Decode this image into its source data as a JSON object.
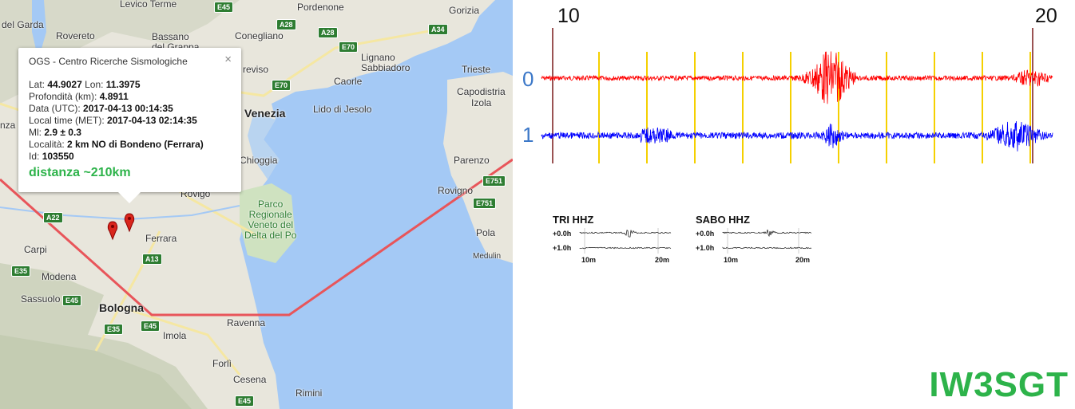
{
  "map": {
    "places": [
      {
        "id": "pordenone",
        "label": "Pordenone"
      },
      {
        "id": "gorizia",
        "label": "Gorizia"
      },
      {
        "id": "levico",
        "label": "Levico Terme"
      },
      {
        "id": "garda",
        "label": "del Garda"
      },
      {
        "id": "rovereto",
        "label": "Rovereto"
      },
      {
        "id": "bassano",
        "label": "Bassano\ndel Grappa"
      },
      {
        "id": "conegliano",
        "label": "Conegliano"
      },
      {
        "id": "lignano",
        "label": "Lignano\nSabbiadoro"
      },
      {
        "id": "trieste",
        "label": "Trieste"
      },
      {
        "id": "treviso",
        "label": "reviso"
      },
      {
        "id": "caorle",
        "label": "Caorle"
      },
      {
        "id": "capodistria",
        "label": "Capodistria"
      },
      {
        "id": "izola",
        "label": "Izola"
      },
      {
        "id": "venezia",
        "label": "Venezia"
      },
      {
        "id": "jesolo",
        "label": "Lido di Jesolo"
      },
      {
        "id": "chioggia",
        "label": "Chioggia"
      },
      {
        "id": "parenzo",
        "label": "Parenzo"
      },
      {
        "id": "rovigo",
        "label": "Rovigo"
      },
      {
        "id": "rovigno",
        "label": "Rovigno"
      },
      {
        "id": "park",
        "label": "Parco\nRegionale\nVeneto del\nDelta del Po"
      },
      {
        "id": "ferrara",
        "label": "Ferrara"
      },
      {
        "id": "carpi",
        "label": "Carpi"
      },
      {
        "id": "pola",
        "label": "Pola"
      },
      {
        "id": "medulin",
        "label": "Medulin"
      },
      {
        "id": "modena",
        "label": "Modena"
      },
      {
        "id": "sassuolo",
        "label": "Sassuolo"
      },
      {
        "id": "bologna",
        "label": "Bologna"
      },
      {
        "id": "ravenna",
        "label": "Ravenna"
      },
      {
        "id": "imola",
        "label": "Imola"
      },
      {
        "id": "forli",
        "label": "Forlì"
      },
      {
        "id": "cesena",
        "label": "Cesena"
      },
      {
        "id": "rimini",
        "label": "Rimini"
      },
      {
        "id": "nza",
        "label": "nza"
      }
    ],
    "shields": [
      {
        "id": "a28a",
        "label": "A28"
      },
      {
        "id": "a28b",
        "label": "A28"
      },
      {
        "id": "a34",
        "label": "A34"
      },
      {
        "id": "e70a",
        "label": "E70"
      },
      {
        "id": "e70b",
        "label": "E70"
      },
      {
        "id": "e45top",
        "label": "E45"
      },
      {
        "id": "a22",
        "label": "A22"
      },
      {
        "id": "a13",
        "label": "A13"
      },
      {
        "id": "e35",
        "label": "E35"
      },
      {
        "id": "e45a",
        "label": "E45"
      },
      {
        "id": "e35b",
        "label": "E35"
      },
      {
        "id": "e45b",
        "label": "E45"
      },
      {
        "id": "e45c",
        "label": "E45"
      },
      {
        "id": "e751a",
        "label": "E751"
      },
      {
        "id": "e751b",
        "label": "E751"
      }
    ],
    "popup": {
      "source": "OGS - Centro Ricerche Sismologiche",
      "close": "×",
      "lat_label": "Lat:",
      "lat": "44.9027",
      "lon_label": "Lon:",
      "lon": "11.3975",
      "depth_label": "Profondità (km):",
      "depth": "4.8911",
      "utc_label": "Data (UTC):",
      "utc": "2017-04-13 00:14:35",
      "local_label": "Local time (MET):",
      "local": "2017-04-13 02:14:35",
      "ml_label": "Ml:",
      "ml": "2.9 ± 0.3",
      "loc_label": "Località:",
      "loc": "2 km NO di Bondeno (Ferrara)",
      "id_label": "Id:",
      "id": "103550",
      "distance": "distanza ~210km"
    }
  },
  "seismogram": {
    "time_labels": [
      "10",
      "20"
    ],
    "channels": [
      {
        "label": "0",
        "color": "#ff0000"
      },
      {
        "label": "1",
        "color": "#0000ff"
      }
    ],
    "marker_color": "#f5d000"
  },
  "helicorders": [
    {
      "title": "TRI HHZ",
      "rows": [
        "+0.0h",
        "+1.0h"
      ],
      "minutes": [
        "10m",
        "20m"
      ]
    },
    {
      "title": "SABO HHZ",
      "rows": [
        "+0.0h",
        "+1.0h"
      ],
      "minutes": [
        "10m",
        "20m"
      ]
    }
  ],
  "callsign": "IW3SGT"
}
